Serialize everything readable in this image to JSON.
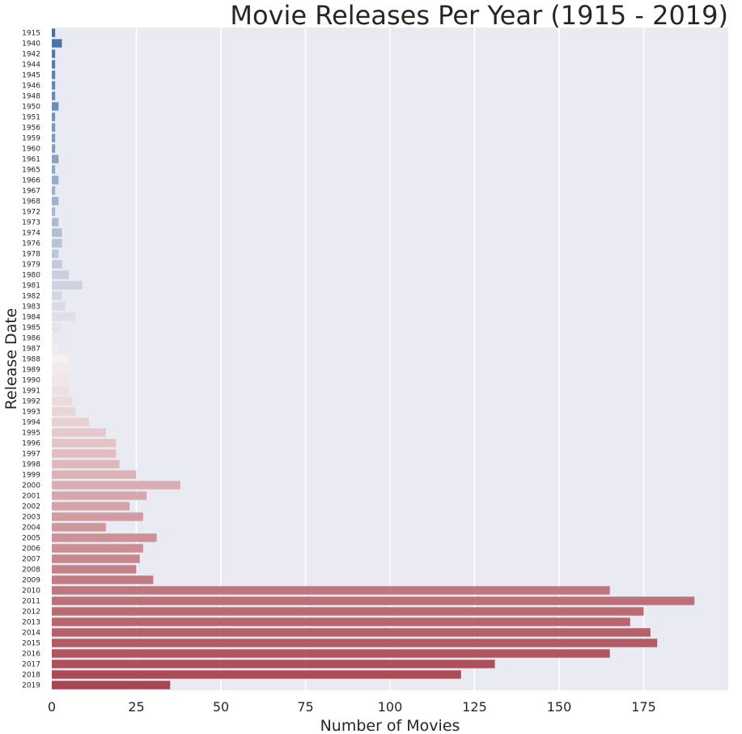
{
  "chart_data": {
    "type": "bar",
    "orientation": "horizontal",
    "title": "Movie Releases Per Year (1915 - 2019)",
    "xlabel": "Number of Movies",
    "ylabel": "Release Date",
    "xlim": [
      0,
      200
    ],
    "xticks": [
      0,
      25,
      50,
      75,
      100,
      125,
      150,
      175
    ],
    "grid": true,
    "legend": "none",
    "colors": {
      "background": "#eaeaf2",
      "grid": "#ffffff",
      "palette_start": "#4470a8",
      "palette_mid": "#f7f0f0",
      "palette_end": "#a8454f"
    },
    "categories": [
      "1915",
      "1940",
      "1942",
      "1944",
      "1945",
      "1946",
      "1948",
      "1950",
      "1951",
      "1956",
      "1959",
      "1960",
      "1961",
      "1965",
      "1966",
      "1967",
      "1968",
      "1972",
      "1973",
      "1974",
      "1976",
      "1978",
      "1979",
      "1980",
      "1981",
      "1982",
      "1983",
      "1984",
      "1985",
      "1986",
      "1987",
      "1988",
      "1989",
      "1990",
      "1991",
      "1992",
      "1993",
      "1994",
      "1995",
      "1996",
      "1997",
      "1998",
      "1999",
      "2000",
      "2001",
      "2002",
      "2003",
      "2004",
      "2005",
      "2006",
      "2007",
      "2008",
      "2009",
      "2010",
      "2011",
      "2012",
      "2013",
      "2014",
      "2015",
      "2016",
      "2017",
      "2018",
      "2019"
    ],
    "values": [
      1,
      3,
      1,
      1,
      1,
      1,
      1,
      2,
      1,
      1,
      1,
      1,
      2,
      1,
      2,
      1,
      2,
      1,
      2,
      3,
      3,
      2,
      3,
      5,
      9,
      3,
      4,
      7,
      3,
      6,
      2,
      5,
      5,
      5,
      5,
      6,
      7,
      11,
      16,
      19,
      19,
      20,
      25,
      38,
      28,
      23,
      27,
      16,
      31,
      27,
      26,
      25,
      30,
      165,
      190,
      175,
      171,
      177,
      179,
      165,
      131,
      121,
      35
    ]
  }
}
